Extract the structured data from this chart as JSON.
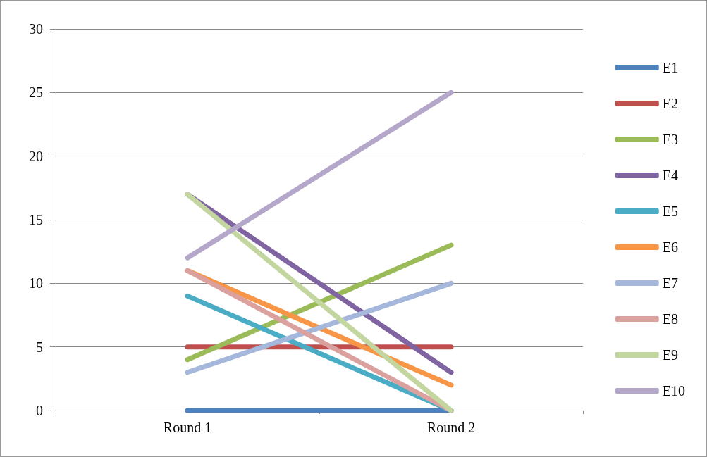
{
  "chart_data": {
    "type": "line",
    "categories": [
      "Round 1",
      "Round 2"
    ],
    "series": [
      {
        "name": "E1",
        "color": "#4f81bd",
        "values": [
          0,
          0
        ]
      },
      {
        "name": "E2",
        "color": "#c0504d",
        "values": [
          5,
          5
        ]
      },
      {
        "name": "E3",
        "color": "#9bbb59",
        "values": [
          4,
          13
        ]
      },
      {
        "name": "E4",
        "color": "#8064a2",
        "values": [
          17,
          3
        ]
      },
      {
        "name": "E5",
        "color": "#4bacc6",
        "values": [
          9,
          0
        ]
      },
      {
        "name": "E6",
        "color": "#f79646",
        "values": [
          11,
          2
        ]
      },
      {
        "name": "E7",
        "color": "#a5b8db",
        "values": [
          3,
          10
        ]
      },
      {
        "name": "E8",
        "color": "#dba19f",
        "values": [
          11,
          0
        ]
      },
      {
        "name": "E9",
        "color": "#c3d6a0",
        "values": [
          17,
          0
        ]
      },
      {
        "name": "E10",
        "color": "#b4a7ca",
        "values": [
          12,
          25
        ]
      }
    ],
    "ylim": [
      0,
      30
    ],
    "yticks": [
      0,
      5,
      10,
      15,
      20,
      25,
      30
    ],
    "grid": "y",
    "legend": "right",
    "marker": "none",
    "line_style": "solid"
  }
}
